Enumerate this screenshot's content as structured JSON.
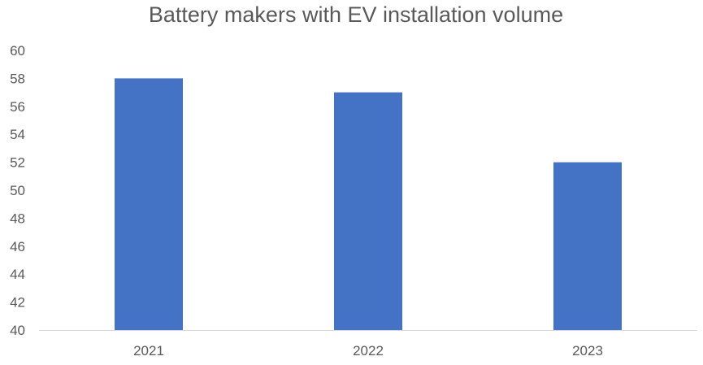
{
  "chart_data": {
    "type": "bar",
    "title": "Battery makers with EV installation volume",
    "xlabel": "",
    "ylabel": "",
    "categories": [
      "2021",
      "2022",
      "2023"
    ],
    "series": [
      {
        "values": [
          58,
          57,
          52
        ],
        "color": "#4472c4"
      }
    ],
    "ylim": [
      40,
      60
    ],
    "y_ticks": [
      "40",
      "42",
      "44",
      "46",
      "48",
      "50",
      "52",
      "54",
      "56",
      "58",
      "60"
    ],
    "grid": false,
    "legend": "none"
  }
}
